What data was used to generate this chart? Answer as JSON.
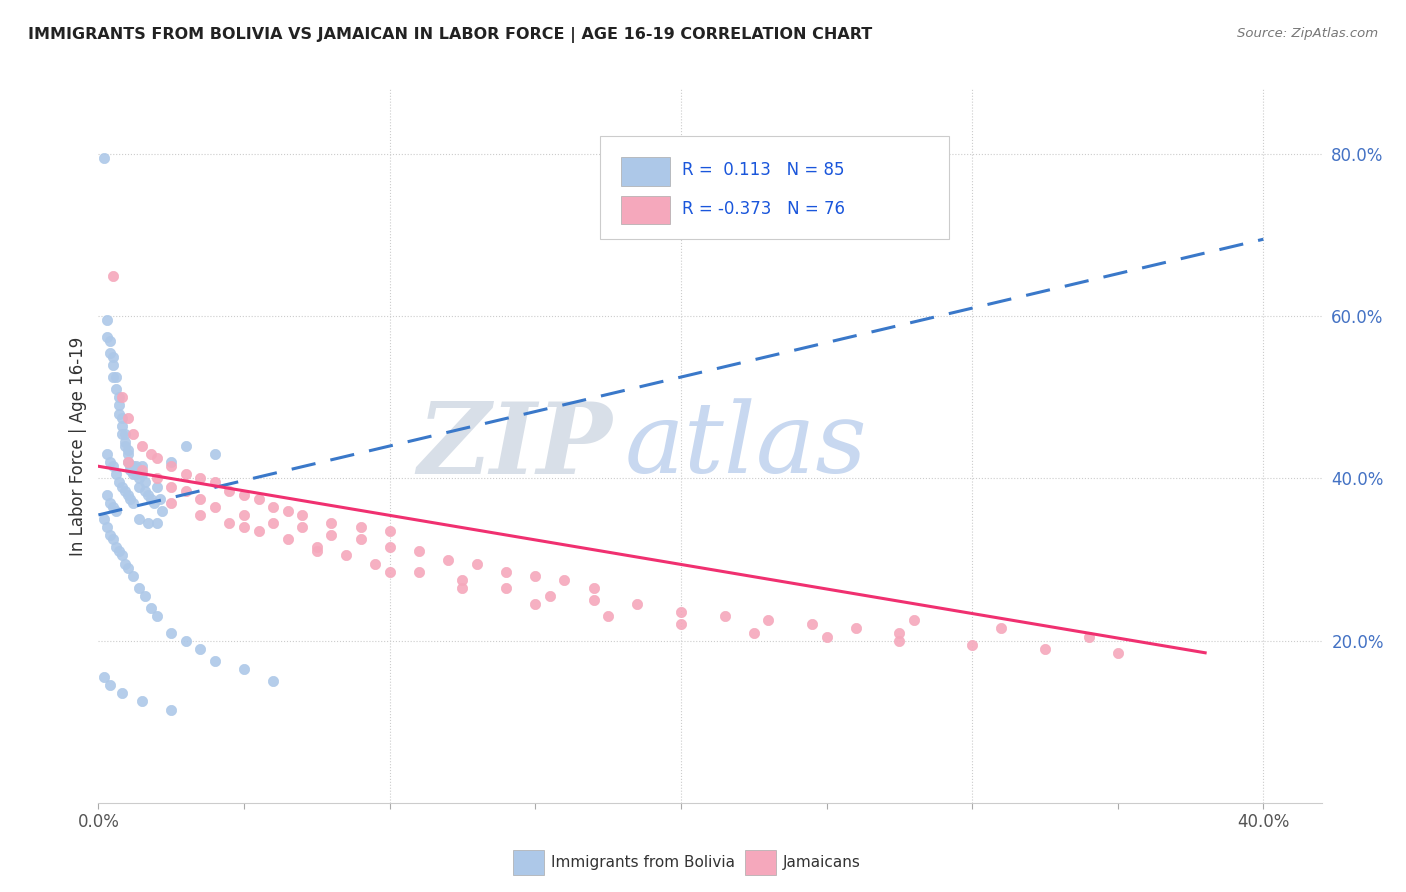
{
  "title": "IMMIGRANTS FROM BOLIVIA VS JAMAICAN IN LABOR FORCE | AGE 16-19 CORRELATION CHART",
  "source": "Source: ZipAtlas.com",
  "ylabel": "In Labor Force | Age 16-19",
  "xlim": [
    0.0,
    0.42
  ],
  "ylim": [
    0.0,
    0.88
  ],
  "xtick_positions": [
    0.0,
    0.05,
    0.1,
    0.15,
    0.2,
    0.25,
    0.3,
    0.35,
    0.4
  ],
  "xtick_labels": [
    "0.0%",
    "",
    "",
    "",
    "",
    "",
    "",
    "",
    "40.0%"
  ],
  "ytick_positions_right": [
    0.2,
    0.4,
    0.6,
    0.8
  ],
  "ytick_labels_right": [
    "20.0%",
    "40.0%",
    "60.0%",
    "80.0%"
  ],
  "bolivia_color": "#adc8e8",
  "jamaica_color": "#f5a8bc",
  "bolivia_line_color": "#3a78c9",
  "jamaica_line_color": "#f03070",
  "R_bolivia": 0.113,
  "N_bolivia": 85,
  "R_jamaica": -0.373,
  "N_jamaica": 76,
  "watermark_zip": "ZIP",
  "watermark_atlas": "atlas",
  "watermark_color_zip": "#d8dfe8",
  "watermark_color_atlas": "#c8d8f0",
  "bolivia_scatter_x": [
    0.002,
    0.003,
    0.003,
    0.004,
    0.004,
    0.005,
    0.005,
    0.005,
    0.006,
    0.006,
    0.007,
    0.007,
    0.007,
    0.008,
    0.008,
    0.008,
    0.009,
    0.009,
    0.009,
    0.01,
    0.01,
    0.01,
    0.011,
    0.011,
    0.012,
    0.012,
    0.013,
    0.013,
    0.014,
    0.014,
    0.015,
    0.015,
    0.016,
    0.016,
    0.017,
    0.018,
    0.019,
    0.02,
    0.021,
    0.022,
    0.003,
    0.004,
    0.005,
    0.006,
    0.007,
    0.008,
    0.009,
    0.01,
    0.011,
    0.012,
    0.003,
    0.004,
    0.005,
    0.006,
    0.014,
    0.017,
    0.02,
    0.025,
    0.03,
    0.04,
    0.002,
    0.003,
    0.004,
    0.005,
    0.006,
    0.007,
    0.008,
    0.009,
    0.01,
    0.012,
    0.014,
    0.016,
    0.018,
    0.02,
    0.025,
    0.03,
    0.035,
    0.04,
    0.05,
    0.06,
    0.002,
    0.004,
    0.008,
    0.015,
    0.025
  ],
  "bolivia_scatter_y": [
    0.795,
    0.595,
    0.575,
    0.57,
    0.555,
    0.55,
    0.54,
    0.525,
    0.525,
    0.51,
    0.5,
    0.49,
    0.48,
    0.475,
    0.465,
    0.455,
    0.455,
    0.445,
    0.44,
    0.435,
    0.43,
    0.42,
    0.415,
    0.41,
    0.415,
    0.405,
    0.415,
    0.405,
    0.4,
    0.39,
    0.415,
    0.405,
    0.395,
    0.385,
    0.38,
    0.375,
    0.37,
    0.39,
    0.375,
    0.36,
    0.43,
    0.42,
    0.415,
    0.405,
    0.395,
    0.39,
    0.385,
    0.38,
    0.375,
    0.37,
    0.38,
    0.37,
    0.365,
    0.36,
    0.35,
    0.345,
    0.345,
    0.42,
    0.44,
    0.43,
    0.35,
    0.34,
    0.33,
    0.325,
    0.315,
    0.31,
    0.305,
    0.295,
    0.29,
    0.28,
    0.265,
    0.255,
    0.24,
    0.23,
    0.21,
    0.2,
    0.19,
    0.175,
    0.165,
    0.15,
    0.155,
    0.145,
    0.135,
    0.125,
    0.115
  ],
  "jamaica_scatter_x": [
    0.005,
    0.008,
    0.01,
    0.012,
    0.015,
    0.018,
    0.02,
    0.025,
    0.03,
    0.035,
    0.04,
    0.045,
    0.05,
    0.055,
    0.06,
    0.065,
    0.07,
    0.08,
    0.09,
    0.1,
    0.01,
    0.015,
    0.02,
    0.025,
    0.03,
    0.035,
    0.04,
    0.05,
    0.06,
    0.07,
    0.08,
    0.09,
    0.1,
    0.11,
    0.12,
    0.13,
    0.14,
    0.15,
    0.16,
    0.17,
    0.025,
    0.035,
    0.045,
    0.055,
    0.065,
    0.075,
    0.085,
    0.095,
    0.11,
    0.125,
    0.14,
    0.155,
    0.17,
    0.185,
    0.2,
    0.215,
    0.23,
    0.245,
    0.26,
    0.275,
    0.05,
    0.075,
    0.1,
    0.125,
    0.15,
    0.175,
    0.2,
    0.225,
    0.25,
    0.275,
    0.3,
    0.325,
    0.35,
    0.28,
    0.31,
    0.34
  ],
  "jamaica_scatter_y": [
    0.65,
    0.5,
    0.475,
    0.455,
    0.44,
    0.43,
    0.425,
    0.415,
    0.405,
    0.4,
    0.395,
    0.385,
    0.38,
    0.375,
    0.365,
    0.36,
    0.355,
    0.345,
    0.34,
    0.335,
    0.42,
    0.41,
    0.4,
    0.39,
    0.385,
    0.375,
    0.365,
    0.355,
    0.345,
    0.34,
    0.33,
    0.325,
    0.315,
    0.31,
    0.3,
    0.295,
    0.285,
    0.28,
    0.275,
    0.265,
    0.37,
    0.355,
    0.345,
    0.335,
    0.325,
    0.315,
    0.305,
    0.295,
    0.285,
    0.275,
    0.265,
    0.255,
    0.25,
    0.245,
    0.235,
    0.23,
    0.225,
    0.22,
    0.215,
    0.21,
    0.34,
    0.31,
    0.285,
    0.265,
    0.245,
    0.23,
    0.22,
    0.21,
    0.205,
    0.2,
    0.195,
    0.19,
    0.185,
    0.225,
    0.215,
    0.205
  ],
  "bolivia_trendline_x": [
    0.0,
    0.4
  ],
  "bolivia_trendline_y": [
    0.355,
    0.695
  ],
  "jamaica_trendline_x": [
    0.0,
    0.38
  ],
  "jamaica_trendline_y": [
    0.415,
    0.185
  ]
}
